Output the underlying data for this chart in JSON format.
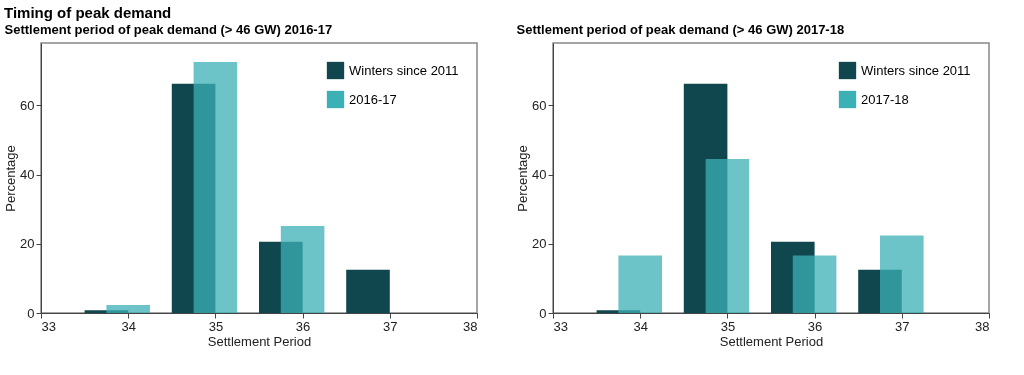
{
  "chart_data": [
    {
      "type": "bar",
      "title": "Timing of peak demand",
      "subtitle": "Settlement period of peak demand (> 46 GW) 2016-17",
      "xlabel": "Settlement Period",
      "ylabel": "Percentage",
      "x": [
        34,
        35,
        36,
        37
      ],
      "series": [
        {
          "name": "Winters since 2011",
          "color": "#10474f",
          "values": [
            0.8,
            66.2,
            20.6,
            12.5
          ]
        },
        {
          "name": "2016-17",
          "color": "#3bb0b5",
          "values": [
            2.3,
            72.5,
            25.1,
            null
          ]
        }
      ],
      "xlim": [
        33,
        38
      ],
      "xticks": [
        33,
        34,
        35,
        36,
        37,
        38
      ],
      "ylim": [
        0,
        78
      ],
      "yticks": [
        0,
        20,
        40,
        60
      ],
      "grid": false,
      "legend": "top right"
    },
    {
      "type": "bar",
      "title": "Settlement period of peak demand (> 46 GW) 2017-18",
      "xlabel": "Settlement Period",
      "ylabel": "Percentage",
      "x": [
        34,
        35,
        36,
        37
      ],
      "series": [
        {
          "name": "Winters since 2011",
          "color": "#10474f",
          "values": [
            0.8,
            66.2,
            20.6,
            12.5
          ]
        },
        {
          "name": "2017-18",
          "color": "#3bb0b5",
          "values": [
            16.6,
            44.5,
            16.6,
            22.4
          ]
        }
      ],
      "xlim": [
        33,
        38
      ],
      "xticks": [
        33,
        34,
        35,
        36,
        37,
        38
      ],
      "ylim": [
        0,
        78
      ],
      "yticks": [
        0,
        20,
        40,
        60
      ],
      "grid": false,
      "legend": "top right"
    }
  ]
}
